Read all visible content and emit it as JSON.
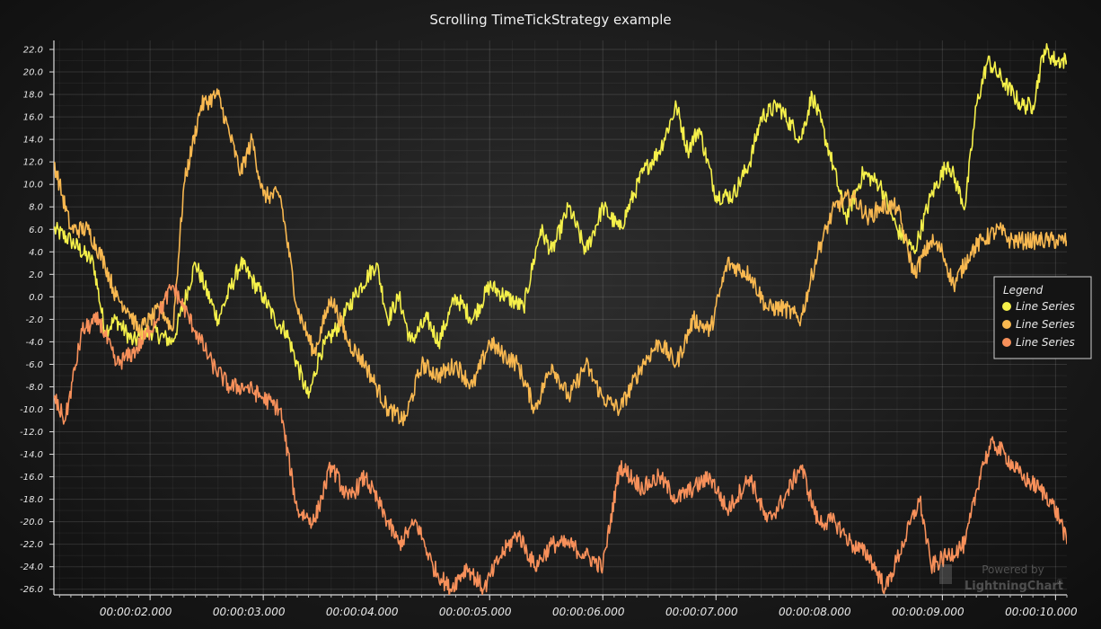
{
  "chart_data": {
    "type": "line",
    "title": "Scrolling TimeTickStrategy example",
    "xlabel": "",
    "ylabel": "",
    "xlim": [
      1.15,
      10.1
    ],
    "ylim": [
      -26.5,
      22.8
    ],
    "x_tick_labels": [
      "00:00:02.000",
      "00:00:03.000",
      "00:00:04.000",
      "00:00:05.000",
      "00:00:06.000",
      "00:00:07.000",
      "00:00:08.000",
      "00:00:09.000",
      "00:00:10.000"
    ],
    "x_tick_values": [
      2,
      3,
      4,
      5,
      6,
      7,
      8,
      9,
      10
    ],
    "y_tick_labels": [
      "22.0",
      "20.0",
      "18.0",
      "16.0",
      "14.0",
      "12.0",
      "10.0",
      "8.0",
      "6.0",
      "4.0",
      "2.0",
      "0.0",
      "-2.0",
      "-4.0",
      "-6.0",
      "-8.0",
      "-10.0",
      "-12.0",
      "-14.0",
      "-16.0",
      "-18.0",
      "-20.0",
      "-22.0",
      "-24.0",
      "-26.0"
    ],
    "y_tick_values": [
      22,
      20,
      18,
      16,
      14,
      12,
      10,
      8,
      6,
      4,
      2,
      0,
      -2,
      -4,
      -6,
      -8,
      -10,
      -12,
      -14,
      -16,
      -18,
      -20,
      -22,
      -24,
      -26
    ],
    "grid": true,
    "legend": {
      "title": "Legend",
      "position": "right"
    },
    "series": [
      {
        "name": "Line Series",
        "color": "#f5f04a",
        "x": [
          1.15,
          1.3,
          1.5,
          1.6,
          1.7,
          1.85,
          2.0,
          2.2,
          2.4,
          2.6,
          2.8,
          3.0,
          3.1,
          3.2,
          3.4,
          3.5,
          3.7,
          3.8,
          4.0,
          4.1,
          4.2,
          4.3,
          4.45,
          4.55,
          4.7,
          4.85,
          5.0,
          5.15,
          5.3,
          5.45,
          5.55,
          5.7,
          5.85,
          6.0,
          6.15,
          6.35,
          6.5,
          6.65,
          6.75,
          6.85,
          7.0,
          7.15,
          7.3,
          7.4,
          7.55,
          7.75,
          7.85,
          8.0,
          8.15,
          8.3,
          8.45,
          8.6,
          8.75,
          8.9,
          9.05,
          9.2,
          9.3,
          9.4,
          9.55,
          9.7,
          9.8,
          9.9,
          10.0,
          10.1
        ],
        "y": [
          6,
          5,
          3,
          -3,
          -2,
          -4,
          -3,
          -4,
          3,
          -2,
          3,
          0,
          -2,
          -3,
          -9,
          -5,
          -2,
          0,
          3,
          -2,
          0,
          -4,
          -2,
          -4,
          0,
          -2,
          1,
          0,
          -1,
          6,
          4,
          8,
          4,
          8,
          6,
          11,
          13,
          17,
          13,
          15,
          9,
          9,
          12,
          16,
          17,
          14,
          18,
          13,
          7,
          11,
          10,
          6,
          4,
          9,
          12,
          8,
          17,
          21,
          19,
          17,
          17,
          22,
          21,
          21
        ]
      },
      {
        "name": "Line Series",
        "color": "#f8b850",
        "x": [
          1.15,
          1.3,
          1.45,
          1.6,
          1.7,
          1.8,
          1.9,
          2.0,
          2.1,
          2.2,
          2.3,
          2.45,
          2.6,
          2.8,
          2.9,
          3.0,
          3.15,
          3.3,
          3.45,
          3.6,
          3.75,
          3.9,
          4.0,
          4.1,
          4.25,
          4.4,
          4.55,
          4.7,
          4.85,
          5.0,
          5.1,
          5.25,
          5.4,
          5.55,
          5.7,
          5.85,
          6.0,
          6.15,
          6.35,
          6.5,
          6.65,
          6.8,
          6.95,
          7.1,
          7.3,
          7.45,
          7.6,
          7.75,
          7.9,
          8.05,
          8.2,
          8.35,
          8.45,
          8.6,
          8.75,
          8.9,
          9.0,
          9.1,
          9.25,
          9.35,
          9.5,
          9.6,
          9.75,
          9.85,
          9.95,
          10.05,
          10.1
        ],
        "y": [
          12,
          6,
          6,
          3,
          0,
          -1,
          -3,
          -2,
          -1,
          -3,
          10,
          17,
          18,
          11,
          14,
          9,
          9,
          -1,
          -5,
          0,
          -4,
          -6,
          -8,
          -10,
          -11,
          -6,
          -7,
          -6,
          -8,
          -4,
          -5,
          -6,
          -10,
          -6,
          -9,
          -6,
          -9,
          -10,
          -6,
          -4,
          -6,
          -2,
          -3,
          3,
          2,
          -1,
          -1,
          -2,
          4,
          8,
          9,
          7,
          8,
          8,
          2,
          5,
          4,
          1,
          4,
          5,
          6,
          5,
          5,
          5,
          5,
          5,
          5
        ]
      },
      {
        "name": "Line Series",
        "color": "#f7905a",
        "x": [
          1.15,
          1.25,
          1.4,
          1.55,
          1.7,
          1.85,
          2.0,
          2.2,
          2.4,
          2.55,
          2.7,
          2.85,
          3.0,
          3.15,
          3.3,
          3.45,
          3.6,
          3.75,
          3.9,
          4.05,
          4.2,
          4.35,
          4.5,
          4.65,
          4.8,
          4.95,
          5.1,
          5.25,
          5.4,
          5.55,
          5.7,
          5.85,
          6.0,
          6.15,
          6.35,
          6.5,
          6.65,
          6.8,
          6.95,
          7.1,
          7.3,
          7.45,
          7.6,
          7.75,
          7.9,
          8.05,
          8.2,
          8.35,
          8.5,
          8.65,
          8.8,
          8.9,
          9.05,
          9.2,
          9.35,
          9.45,
          9.55,
          9.7,
          9.85,
          9.95,
          10.05,
          10.1
        ],
        "y": [
          -9,
          -11,
          -3,
          -2,
          -6,
          -5,
          -3,
          1,
          -3,
          -6,
          -8,
          -8,
          -9,
          -10,
          -19,
          -20,
          -15,
          -18,
          -16,
          -19,
          -22,
          -20,
          -24,
          -26,
          -24,
          -26,
          -23,
          -21,
          -24,
          -22,
          -22,
          -23,
          -24,
          -15,
          -17,
          -16,
          -18,
          -17,
          -16,
          -19,
          -16,
          -20,
          -18,
          -15,
          -20,
          -20,
          -22,
          -23,
          -26,
          -22,
          -18,
          -24,
          -23,
          -22,
          -15,
          -13,
          -14,
          -16,
          -17,
          -18,
          -20,
          -22
        ]
      }
    ]
  },
  "watermark": {
    "line1": "Powered by",
    "line2": "LightningChart",
    "mark": "®"
  }
}
